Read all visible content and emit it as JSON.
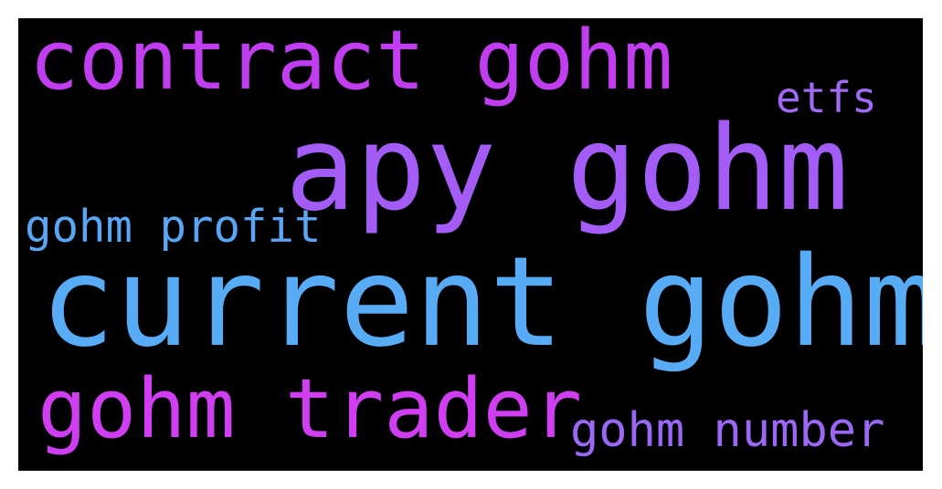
{
  "words": {
    "contract_gohm": {
      "text": "contract gohm",
      "color": "#c03ef0"
    },
    "etfs": {
      "text": "etfs",
      "color": "#a06af5"
    },
    "apy_gohm": {
      "text": "apy gohm",
      "color": "#a35cf5"
    },
    "gohm_profit": {
      "text": "gohm profit",
      "color": "#5aa6f5"
    },
    "current_gohm": {
      "text": "current gohm",
      "color": "#58abf5"
    },
    "gohm_trader": {
      "text": "gohm trader",
      "color": "#cf3ef0"
    },
    "gohm_number": {
      "text": "gohm number",
      "color": "#9a68f5"
    }
  }
}
